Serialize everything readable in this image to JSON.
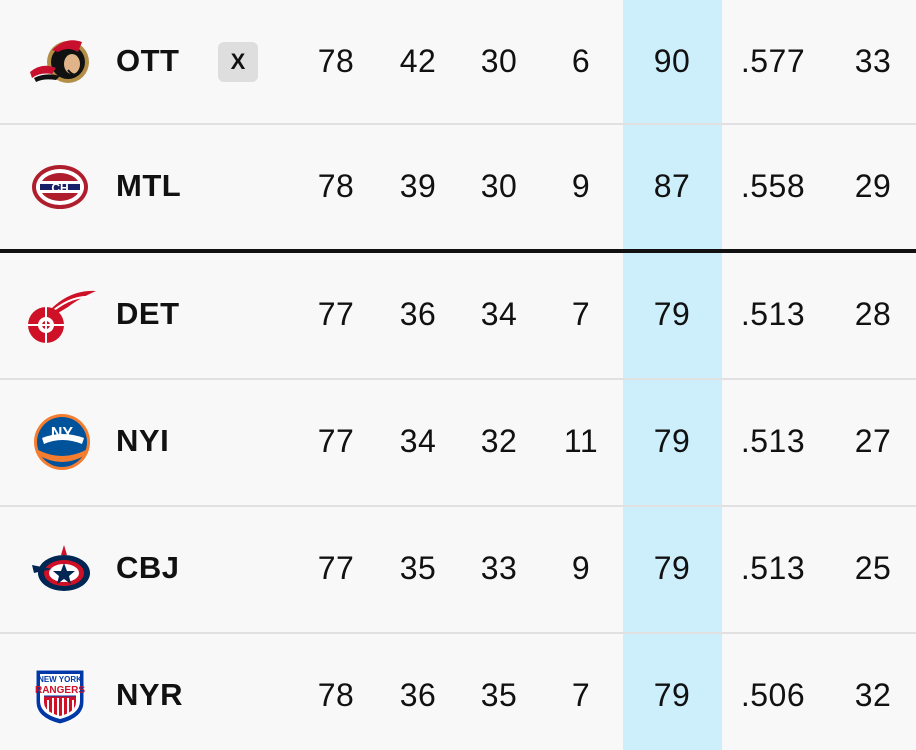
{
  "colors": {
    "points_column_highlight": "#cdeefb",
    "cutoff_line": "#111111"
  },
  "teams": [
    {
      "abbr": "OTT",
      "logo": "senators-logo",
      "clinch": "X",
      "gp": "78",
      "w": "42",
      "l": "30",
      "otl": "6",
      "pts": "90",
      "pct": ".577",
      "row": "33"
    },
    {
      "abbr": "MTL",
      "logo": "canadiens-logo",
      "gp": "78",
      "w": "39",
      "l": "30",
      "otl": "9",
      "pts": "87",
      "pct": ".558",
      "row": "29"
    },
    {
      "abbr": "DET",
      "logo": "red-wings-logo",
      "gp": "77",
      "w": "36",
      "l": "34",
      "otl": "7",
      "pts": "79",
      "pct": ".513",
      "row": "28"
    },
    {
      "abbr": "NYI",
      "logo": "islanders-logo",
      "gp": "77",
      "w": "34",
      "l": "32",
      "otl": "11",
      "pts": "79",
      "pct": ".513",
      "row": "27"
    },
    {
      "abbr": "CBJ",
      "logo": "blue-jackets-logo",
      "gp": "77",
      "w": "35",
      "l": "33",
      "otl": "9",
      "pts": "79",
      "pct": ".513",
      "row": "25"
    },
    {
      "abbr": "NYR",
      "logo": "rangers-logo",
      "gp": "78",
      "w": "36",
      "l": "35",
      "otl": "7",
      "pts": "79",
      "pct": ".506",
      "row": "32"
    }
  ],
  "logo_text": {
    "nyr_line1": "NEW YORK",
    "nyr_line2": "RANGERS",
    "nyi_text": "NY",
    "mtl_text": "CH"
  }
}
